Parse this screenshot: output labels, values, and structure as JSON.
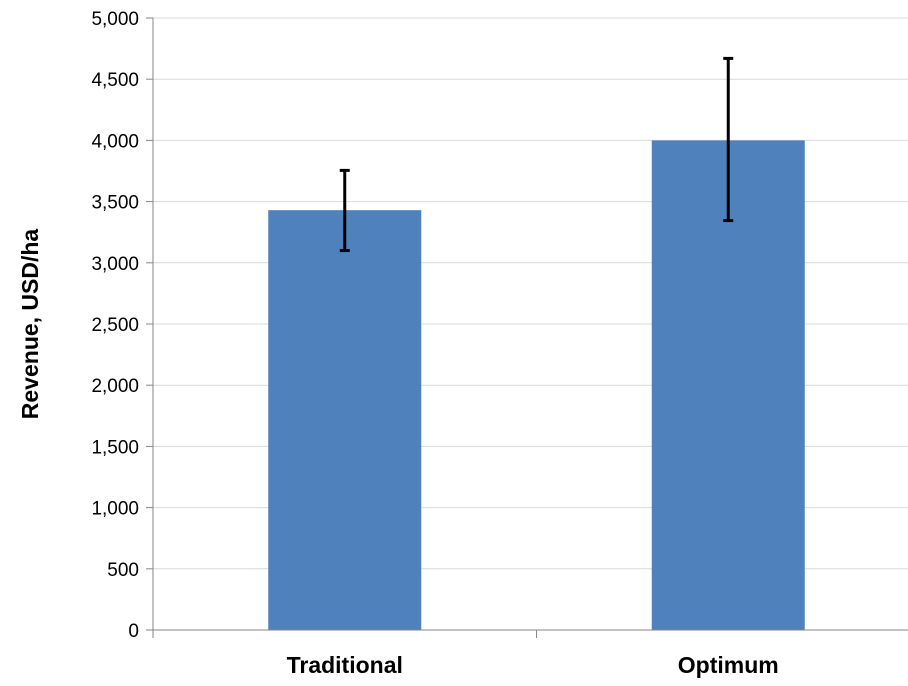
{
  "chart_data": {
    "type": "bar",
    "title": "",
    "xlabel": "",
    "ylabel": "Revenue, USD/ha",
    "categories": [
      "Traditional",
      "Optimum"
    ],
    "values": [
      3430,
      4000
    ],
    "error_low": [
      3100,
      3345
    ],
    "error_high": [
      3755,
      4670
    ],
    "ylim": [
      0,
      5000
    ],
    "yticks": [
      0,
      500,
      1000,
      1500,
      2000,
      2500,
      3000,
      3500,
      4000,
      4500,
      5000
    ],
    "ytick_labels": [
      "0",
      "500",
      "1,000",
      "1,500",
      "2,000",
      "2,500",
      "3,000",
      "3,500",
      "4,000",
      "4,500",
      "5,000"
    ],
    "grid": true,
    "legend": "none",
    "colors": {
      "bar": "#4f81bd",
      "error_bar": "#000000",
      "grid": "#d9d9d9",
      "axis": "#868686"
    }
  }
}
